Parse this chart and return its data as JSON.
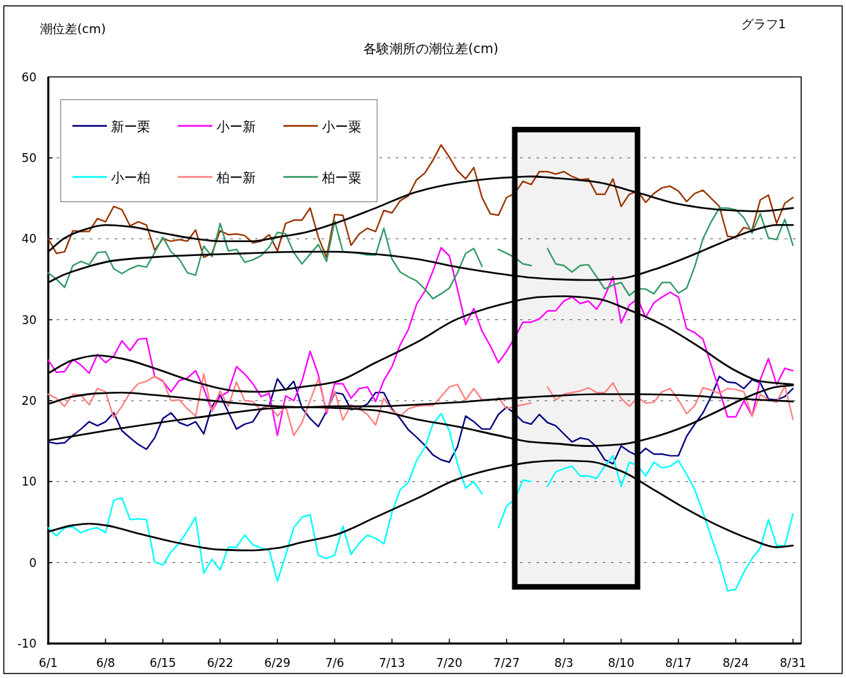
{
  "chart_data": {
    "type": "line",
    "title": "各験潮所の潮位差(cm)",
    "ylabel": "潮位差(cm)",
    "annotations": [
      "グラフ1"
    ],
    "x": [
      "--06-01",
      "--06-02",
      "--06-03",
      "--06-04",
      "--06-05",
      "--06-06",
      "--06-07",
      "--06-08",
      "--06-09",
      "--06-10",
      "--06-11",
      "--06-12",
      "--06-13",
      "--06-14",
      "--06-15",
      "--06-16",
      "--06-17",
      "--06-18",
      "--06-19",
      "--06-20",
      "--06-21",
      "--06-22",
      "--06-23",
      "--06-24",
      "--06-25",
      "--06-26",
      "--06-27",
      "--06-28",
      "--06-29",
      "--06-30",
      "--07-01",
      "--07-02",
      "--07-03",
      "--07-04",
      "--07-05",
      "--07-06",
      "--07-07",
      "--07-08",
      "--07-09",
      "--07-10",
      "--07-11",
      "--07-12",
      "--07-13",
      "--07-14",
      "--07-15",
      "--07-16",
      "--07-17",
      "--07-18",
      "--07-19",
      "--07-20",
      "--07-21",
      "--07-22",
      "--07-23",
      "--07-24",
      "--07-25",
      "--07-26",
      "--07-27",
      "--07-28",
      "--07-29",
      "--07-30",
      "--07-31",
      "--08-01",
      "--08-02",
      "--08-03",
      "--08-04",
      "--08-05",
      "--08-06",
      "--08-07",
      "--08-08",
      "--08-09",
      "--08-10",
      "--08-11",
      "--08-12",
      "--08-13",
      "--08-14",
      "--08-15",
      "--08-16",
      "--08-17",
      "--08-18",
      "--08-19",
      "--08-20",
      "--08-21",
      "--08-22",
      "--08-23",
      "--08-24",
      "--08-25",
      "--08-26",
      "--08-27",
      "--08-28",
      "--08-29",
      "--08-30",
      "--08-31"
    ],
    "series": [
      {
        "name": "新ー栗",
        "color": "#000080",
        "values": [
          14.9,
          14.7,
          14.8,
          15.7,
          16.5,
          17.4,
          16.9,
          17.4,
          18.5,
          16.3,
          15.4,
          14.6,
          14.0,
          15.4,
          17.8,
          18.5,
          17.3,
          16.9,
          17.4,
          15.9,
          19.3,
          20.7,
          18.6,
          16.5,
          17.1,
          17.4,
          19.0,
          19.4,
          22.7,
          21.3,
          22.4,
          19.1,
          17.8,
          16.8,
          18.7,
          21.0,
          20.8,
          18.9,
          19.1,
          19.6,
          21.0,
          21.0,
          19.0,
          17.8,
          16.4,
          15.5,
          14.5,
          13.3,
          12.7,
          12.4,
          14.3,
          18.1,
          17.4,
          16.5,
          16.5,
          18.3,
          19.2,
          18.4,
          17.4,
          17.1,
          18.3,
          17.3,
          16.9,
          15.9,
          14.9,
          15.4,
          15.2,
          14.3,
          12.7,
          12.2,
          14.4,
          13.7,
          13.2,
          14.1,
          13.4,
          13.4,
          13.2,
          13.2,
          15.6,
          17.1,
          18.5,
          20.5,
          23.0,
          22.3,
          22.2,
          21.5,
          22.6,
          22.2,
          20.2,
          20.1,
          20.5,
          21.5
        ]
      },
      {
        "name": "小ー新",
        "color": "#ff00ff",
        "values": [
          25.0,
          23.5,
          23.6,
          25.1,
          24.4,
          23.4,
          25.7,
          24.7,
          25.5,
          27.4,
          26.2,
          27.6,
          27.7,
          23.0,
          22.4,
          21.1,
          22.5,
          22.8,
          23.7,
          21.5,
          18.7,
          20.5,
          21.1,
          24.2,
          23.3,
          22.1,
          20.5,
          20.9,
          15.7,
          20.6,
          20.0,
          22.4,
          26.1,
          23.2,
          18.4,
          22.1,
          22.1,
          20.3,
          21.5,
          21.7,
          19.9,
          22.5,
          24.2,
          26.9,
          28.8,
          31.9,
          33.5,
          36.0,
          38.9,
          37.9,
          33.8,
          29.4,
          31.4,
          28.6,
          26.8,
          24.7,
          26.1,
          27.8,
          29.7,
          29.7,
          30.1,
          31.1,
          31.1,
          32.3,
          32.8,
          32.0,
          32.3,
          31.3,
          32.9,
          35.3,
          29.6,
          31.8,
          32.6,
          30.3,
          32.1,
          32.8,
          33.4,
          32.8,
          28.9,
          28.4,
          27.6,
          24.4,
          21.3,
          18.0,
          18.0,
          20.0,
          18.1,
          22.6,
          25.2,
          22.0,
          24.0,
          23.7
        ]
      },
      {
        "name": "小ー粟",
        "color": "#993300",
        "values": [
          40.0,
          38.2,
          38.4,
          41.0,
          40.9,
          40.9,
          42.5,
          42.1,
          44.0,
          43.6,
          41.6,
          42.1,
          41.7,
          38.6,
          40.0,
          39.7,
          39.9,
          39.7,
          41.1,
          37.7,
          38.2,
          41.0,
          40.5,
          40.6,
          40.4,
          39.5,
          39.7,
          40.5,
          38.5,
          41.9,
          42.3,
          42.3,
          43.8,
          40.2,
          37.7,
          43.0,
          42.9,
          39.2,
          40.6,
          41.3,
          40.9,
          43.5,
          43.2,
          44.7,
          45.3,
          47.3,
          48.1,
          49.7,
          51.6,
          50.1,
          48.4,
          47.4,
          48.8,
          45.1,
          43.1,
          42.9,
          45.1,
          45.6,
          47.1,
          46.7,
          48.3,
          48.3,
          48.0,
          48.3,
          47.7,
          47.3,
          47.4,
          45.5,
          45.5,
          47.4,
          44.0,
          45.5,
          45.9,
          44.5,
          45.6,
          46.3,
          46.5,
          45.9,
          44.6,
          45.6,
          46.0,
          45.0,
          44.0,
          40.3,
          40.2,
          41.4,
          41.1,
          44.8,
          45.4,
          41.9,
          44.4,
          45.1
        ]
      },
      {
        "name": "小ー柏",
        "color": "#00ffff",
        "values": [
          4.3,
          3.3,
          4.3,
          4.4,
          3.7,
          4.1,
          4.3,
          3.7,
          7.7,
          8.0,
          5.3,
          5.4,
          5.3,
          0.1,
          -0.3,
          1.3,
          2.4,
          3.9,
          5.6,
          -1.3,
          0.4,
          -0.9,
          1.9,
          1.9,
          3.4,
          2.2,
          1.8,
          1.5,
          -2.3,
          0.9,
          4.3,
          5.6,
          5.9,
          0.9,
          0.5,
          0.9,
          4.5,
          1.0,
          2.4,
          3.4,
          3.0,
          2.3,
          6.2,
          9.0,
          9.9,
          12.6,
          14.2,
          17.1,
          18.4,
          16.3,
          12.2,
          9.2,
          10.0,
          8.5,
          null,
          4.3,
          7.0,
          7.8,
          10.2,
          10.0,
          null,
          9.4,
          11.2,
          11.6,
          11.9,
          10.7,
          10.7,
          10.4,
          11.9,
          13.2,
          9.4,
          12.4,
          12.0,
          10.7,
          12.4,
          11.7,
          11.9,
          12.6,
          10.9,
          9.0,
          6.2,
          3.2,
          0.2,
          -3.5,
          -3.3,
          -1.2,
          0.5,
          1.8,
          5.3,
          2.1,
          2.1,
          6.0
        ]
      },
      {
        "name": "柏ー新",
        "color": "#ff8080",
        "values": [
          20.8,
          20.3,
          19.3,
          20.8,
          20.7,
          19.5,
          21.5,
          21.1,
          17.9,
          19.3,
          21.0,
          22.1,
          22.4,
          23.0,
          22.5,
          20.0,
          20.1,
          19.0,
          18.1,
          23.3,
          18.7,
          21.2,
          19.3,
          22.3,
          20.0,
          19.9,
          18.8,
          19.5,
          18.1,
          19.3,
          15.7,
          17.3,
          20.0,
          22.7,
          18.7,
          21.2,
          17.6,
          19.5,
          19.0,
          18.3,
          17.0,
          20.3,
          18.8,
          18.1,
          19.0,
          19.3,
          19.4,
          19.4,
          20.5,
          21.7,
          22.0,
          20.1,
          21.5,
          20.1,
          null,
          20.4,
          19.0,
          19.3,
          19.5,
          19.7,
          null,
          21.7,
          20.1,
          20.8,
          21.0,
          21.2,
          21.6,
          21.0,
          21.0,
          22.2,
          20.3,
          19.3,
          20.4,
          19.7,
          19.8,
          21.1,
          21.5,
          20.1,
          18.4,
          19.4,
          21.6,
          21.3,
          20.9,
          21.5,
          21.4,
          21.1,
          18.1,
          20.8,
          20.1,
          19.8,
          21.8,
          17.7
        ]
      },
      {
        "name": "柏ー粟",
        "color": "#339966",
        "values": [
          35.8,
          35.0,
          34.0,
          36.7,
          37.2,
          36.8,
          38.3,
          38.4,
          36.3,
          35.7,
          36.3,
          36.7,
          36.5,
          38.3,
          40.2,
          38.4,
          37.5,
          35.8,
          35.5,
          39.1,
          37.8,
          41.9,
          38.5,
          38.7,
          37.1,
          37.4,
          37.9,
          39.0,
          40.8,
          40.6,
          38.3,
          36.9,
          38.1,
          39.3,
          37.2,
          42.2,
          38.4,
          38.3,
          38.2,
          38.0,
          38.0,
          41.3,
          37.5,
          35.9,
          35.3,
          34.8,
          33.8,
          32.6,
          33.2,
          33.9,
          35.8,
          38.2,
          38.8,
          36.6,
          null,
          38.7,
          38.2,
          37.7,
          36.9,
          36.7,
          null,
          38.8,
          36.9,
          36.7,
          35.9,
          36.7,
          36.8,
          35.3,
          33.8,
          34.3,
          34.6,
          33.0,
          33.8,
          33.8,
          33.2,
          34.6,
          34.6,
          33.3,
          33.9,
          36.6,
          40.0,
          42.1,
          43.8,
          43.8,
          43.6,
          42.6,
          40.7,
          43.1,
          40.1,
          39.9,
          42.4,
          39.2
        ]
      },
      {
        "type": "line",
        "color": "#000000",
        "x": [
          "--06-01",
          "--06-03",
          "--06-05",
          "--06-08",
          "--06-11",
          "--06-15",
          "--06-19",
          "--06-22",
          "--06-26",
          "--06-29",
          "--07-02",
          "--07-06",
          "--07-11",
          "--07-16",
          "--07-21",
          "--07-26",
          "--07-30",
          "--08-02",
          "--08-07",
          "--08-12",
          "--08-17",
          "--08-22",
          "--08-27",
          "--08-31"
        ],
        "values": [
          38.4,
          40.1,
          41.0,
          41.7,
          41.5,
          40.7,
          40.0,
          39.7,
          39.7,
          40.2,
          40.7,
          41.9,
          43.8,
          45.8,
          46.9,
          47.5,
          47.7,
          47.5,
          47.0,
          45.7,
          44.3,
          43.6,
          43.4,
          43.8
        ]
      },
      {
        "type": "line",
        "color": "#000000",
        "x": [
          "--06-01",
          "--06-03",
          "--06-05",
          "--06-09",
          "--06-15",
          "--06-19",
          "--06-25",
          "--07-02",
          "--07-06",
          "--07-11",
          "--07-16",
          "--07-21",
          "--07-26",
          "--07-30",
          "--08-02",
          "--08-06",
          "--08-10",
          "--08-14",
          "--08-18",
          "--08-22",
          "--08-26",
          "--08-29",
          "--08-31"
        ],
        "values": [
          34.6,
          35.6,
          36.3,
          37.3,
          37.8,
          38.0,
          38.2,
          38.4,
          38.4,
          38.1,
          37.5,
          36.5,
          35.7,
          35.2,
          35.0,
          34.9,
          35.1,
          36.2,
          37.7,
          39.4,
          41.0,
          41.7,
          41.7
        ]
      },
      {
        "type": "line",
        "color": "#000000",
        "x": [
          "--06-01",
          "--06-04",
          "--06-07",
          "--06-10",
          "--06-14",
          "--06-19",
          "--06-24",
          "--06-27",
          "--07-02",
          "--07-06",
          "--07-11",
          "--07-16",
          "--07-21",
          "--07-26",
          "--07-31",
          "--08-03",
          "--08-07",
          "--08-11",
          "--08-15",
          "--08-19",
          "--08-24",
          "--08-27",
          "--08-31"
        ],
        "values": [
          23.4,
          25.0,
          25.6,
          25.2,
          24.0,
          22.3,
          21.2,
          21.1,
          21.7,
          22.3,
          24.7,
          27.2,
          30.1,
          31.8,
          32.8,
          32.9,
          32.6,
          31.2,
          29.4,
          27.0,
          23.7,
          22.4,
          22.0
        ]
      },
      {
        "type": "line",
        "color": "#000000",
        "x": [
          "--06-01",
          "--06-04",
          "--06-07",
          "--06-10",
          "--06-14",
          "--06-19",
          "--06-24",
          "--06-29",
          "--07-02",
          "--07-06",
          "--07-11",
          "--07-16",
          "--07-21",
          "--07-26",
          "--07-31",
          "--08-02",
          "--08-07",
          "--08-12",
          "--08-17",
          "--08-22",
          "--08-27",
          "--08-31"
        ],
        "values": [
          19.6,
          20.5,
          20.9,
          21.0,
          20.7,
          20.2,
          19.7,
          19.3,
          19.2,
          19.3,
          19.3,
          19.5,
          19.8,
          20.2,
          20.5,
          20.6,
          20.8,
          20.8,
          20.7,
          20.4,
          20.1,
          19.9
        ]
      },
      {
        "type": "line",
        "color": "#000000",
        "x": [
          "--06-01",
          "--06-10",
          "--06-19",
          "--06-29",
          "--07-02",
          "--07-06",
          "--07-11",
          "--07-16",
          "--07-21",
          "--07-26",
          "--07-30",
          "--08-02",
          "--08-06",
          "--08-10",
          "--08-14",
          "--08-18",
          "--08-22",
          "--08-26",
          "--08-29",
          "--08-31"
        ],
        "values": [
          15.1,
          16.6,
          17.9,
          19.1,
          19.2,
          19.1,
          18.8,
          17.7,
          16.8,
          15.7,
          14.9,
          14.7,
          14.4,
          14.6,
          15.5,
          16.9,
          18.8,
          20.7,
          21.7,
          21.9
        ]
      },
      {
        "type": "line",
        "color": "#000000",
        "x": [
          "--06-01",
          "--06-04",
          "--06-06",
          "--06-08",
          "--06-12",
          "--06-17",
          "--06-22",
          "--06-26",
          "--06-29",
          "--07-02",
          "--07-06",
          "--07-11",
          "--07-16",
          "--07-21",
          "--07-26",
          "--07-30",
          "--08-02",
          "--08-06",
          "--08-10",
          "--08-14",
          "--08-18",
          "--08-22",
          "--08-26",
          "--08-29",
          "--08-31"
        ],
        "values": [
          3.8,
          4.6,
          4.8,
          4.6,
          3.6,
          2.4,
          1.6,
          1.5,
          1.8,
          2.5,
          3.4,
          5.6,
          7.9,
          10.3,
          11.7,
          12.4,
          12.6,
          12.5,
          11.3,
          9.0,
          6.6,
          4.5,
          2.8,
          1.9,
          2.1
        ]
      }
    ],
    "xlim": [
      "--06-01",
      "--09-01"
    ],
    "xticks": [
      {
        "value": "--06-01",
        "label": "6/1"
      },
      {
        "value": "--06-08",
        "label": "6/8"
      },
      {
        "value": "--06-15",
        "label": "6/15"
      },
      {
        "value": "--06-22",
        "label": "6/22"
      },
      {
        "value": "--06-29",
        "label": "6/29"
      },
      {
        "value": "--07-06",
        "label": "7/6"
      },
      {
        "value": "--07-13",
        "label": "7/13"
      },
      {
        "value": "--07-20",
        "label": "7/20"
      },
      {
        "value": "--07-27",
        "label": "7/27"
      },
      {
        "value": "--08-03",
        "label": "8/3"
      },
      {
        "value": "--08-10",
        "label": "8/10"
      },
      {
        "value": "--08-17",
        "label": "8/17"
      },
      {
        "value": "--08-24",
        "label": "8/24"
      },
      {
        "value": "--08-31",
        "label": "8/31"
      }
    ],
    "ylim": [
      -10,
      60
    ],
    "yticks": [
      -10,
      0,
      10,
      20,
      30,
      40,
      50,
      60
    ],
    "grid": "y",
    "legend": "top left",
    "bands": [
      {
        "axis": "x",
        "from": "--07-28",
        "to": "--08-12",
        "color": "#000000"
      }
    ]
  }
}
